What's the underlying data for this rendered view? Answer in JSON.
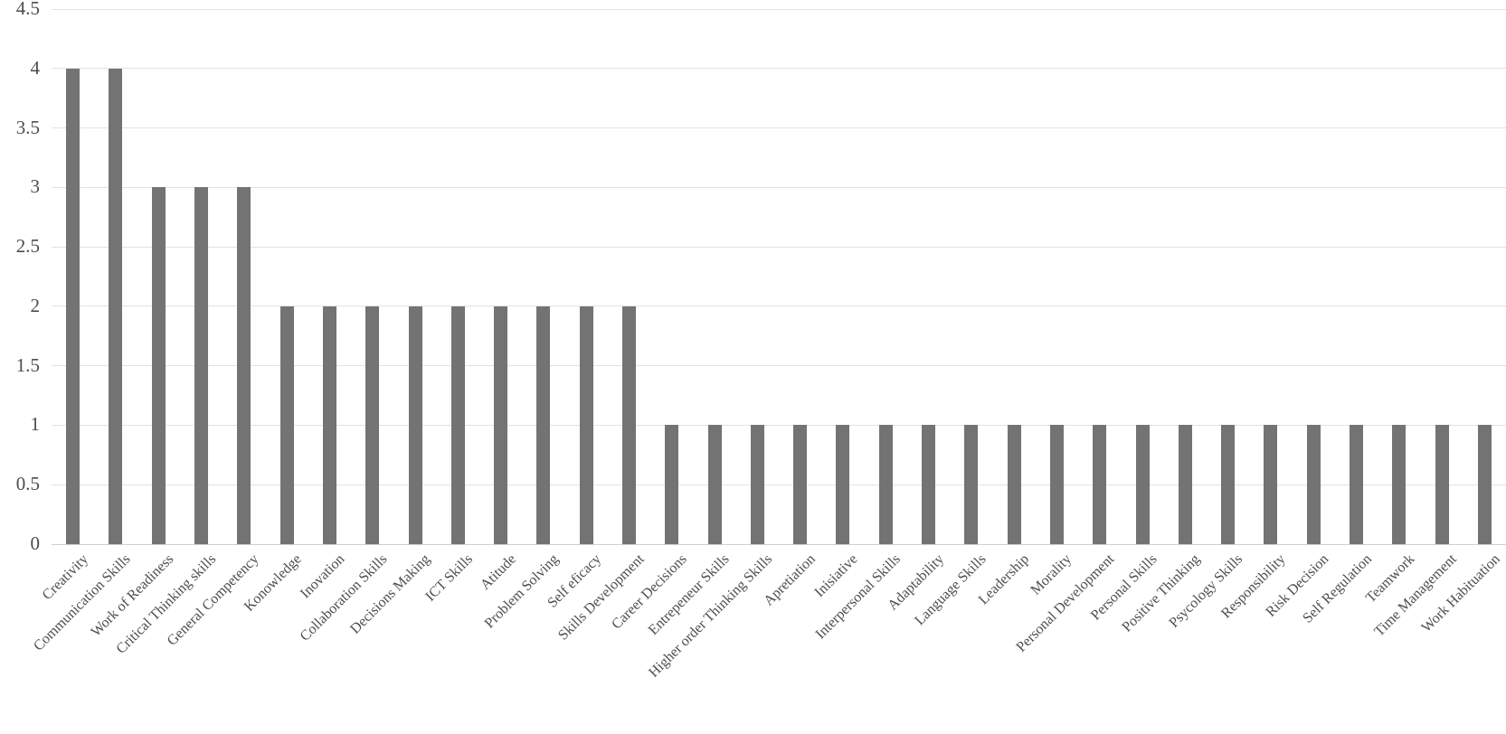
{
  "chart_data": {
    "type": "bar",
    "bar_orientation": "vertical",
    "grid": true,
    "legend": "none",
    "categories": [
      "Creativity",
      "Communication Skills",
      "Work of Readiness",
      "Critical Thinking skills",
      "General Competency",
      "Konowledge",
      "Inovation",
      "Collaboration Skills",
      "Decisions Making",
      "ICT Skills",
      "Atitude",
      "Problem Solving",
      "Self eficacy",
      "Skills Development",
      "Career Decisions",
      "Entrepeneur Skills",
      "Higher order Thinking Skills",
      "Apretiation",
      "Inisiative",
      "Interpersonal Skills",
      "Adaptability",
      "Language Skills",
      "Leadership",
      "Morality",
      "Personal Development",
      "Personal Skills",
      "Positive Thinking",
      "Psycology Skills",
      "Responsibility",
      "Risk Decision",
      "Self Regulation",
      "Teamwork",
      "Time Management",
      "Work Habituation"
    ],
    "values": [
      4,
      4,
      3,
      3,
      3,
      2,
      2,
      2,
      2,
      2,
      2,
      2,
      2,
      2,
      1,
      1,
      1,
      1,
      1,
      1,
      1,
      1,
      1,
      1,
      1,
      1,
      1,
      1,
      1,
      1,
      1,
      1,
      1,
      1
    ],
    "ylim": [
      0,
      4.5
    ],
    "yticks": [
      0,
      0.5,
      1,
      1.5,
      2,
      2.5,
      3,
      3.5,
      4,
      4.5
    ],
    "ytick_labels": [
      "0",
      "0.5",
      "1",
      "1.5",
      "2",
      "2.5",
      "3",
      "3.5",
      "4",
      "4.5"
    ],
    "colors": {
      "bar": "#737373",
      "gridline": "#e2e2e2",
      "axis_line": "#cfcfcf",
      "text": "#4d4d4d",
      "background": "#ffffff"
    }
  }
}
